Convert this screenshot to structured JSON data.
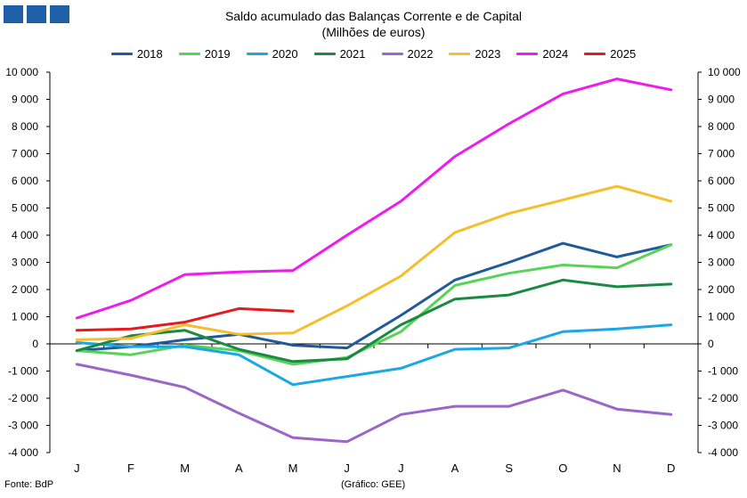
{
  "logo_icon": "bp-logo-icon",
  "chart_data": {
    "type": "line",
    "title": "Saldo acumulado  das Balanças Corrente e de Capital",
    "subtitle": "(Milhões de euros)",
    "categories": [
      "J",
      "F",
      "M",
      "A",
      "M",
      "J",
      "J",
      "A",
      "S",
      "O",
      "N",
      "D"
    ],
    "ylim": [
      -4000,
      10000
    ],
    "yticks": [
      10000,
      9000,
      8000,
      7000,
      6000,
      5000,
      4000,
      3000,
      2000,
      1000,
      0,
      -1000,
      -2000,
      -3000,
      -4000
    ],
    "ytick_labels": [
      "10 000",
      "9 000",
      "8 000",
      "7 000",
      "6 000",
      "5 000",
      "4 000",
      "3 000",
      "2 000",
      "1 000",
      "0",
      "-1 000",
      "-2 000",
      "-3 000",
      "-4 000"
    ],
    "legend_position": "top-center",
    "series": [
      {
        "name": "2018",
        "color": "#1f5a99",
        "values": [
          -250,
          -100,
          150,
          350,
          -50,
          -150,
          1050,
          2350,
          3000,
          3700,
          3200,
          3650
        ]
      },
      {
        "name": "2019",
        "color": "#57d457",
        "values": [
          -250,
          -400,
          -50,
          -250,
          -750,
          -500,
          450,
          2150,
          2600,
          2900,
          2800,
          3650
        ]
      },
      {
        "name": "2020",
        "color": "#1aa7e3",
        "values": [
          50,
          -100,
          -100,
          -400,
          -1500,
          -1200,
          -900,
          -200,
          -150,
          450,
          550,
          700
        ]
      },
      {
        "name": "2021",
        "color": "#1a8a42",
        "values": [
          -250,
          300,
          500,
          -200,
          -650,
          -550,
          700,
          1650,
          1800,
          2350,
          2100,
          2200
        ]
      },
      {
        "name": "2022",
        "color": "#9b66c7",
        "values": [
          -750,
          -1150,
          -1600,
          -2550,
          -3450,
          -3600,
          -2600,
          -2300,
          -2300,
          -1700,
          -2400,
          -2600
        ]
      },
      {
        "name": "2023",
        "color": "#f4be2c",
        "values": [
          150,
          200,
          700,
          350,
          400,
          1400,
          2500,
          4100,
          4800,
          5300,
          5800,
          5250
        ]
      },
      {
        "name": "2024",
        "color": "#ee1bef",
        "values": [
          950,
          1600,
          2550,
          2650,
          2700,
          4000,
          5250,
          6900,
          8100,
          9200,
          9750,
          9350
        ]
      },
      {
        "name": "2025",
        "color": "#e41a1c",
        "values": [
          500,
          550,
          800,
          1300,
          1200,
          null,
          null,
          null,
          null,
          null,
          null,
          null
        ]
      }
    ]
  },
  "footer": {
    "source": "Fonte: BdP",
    "credit": "(Gráfico: GEE)"
  }
}
